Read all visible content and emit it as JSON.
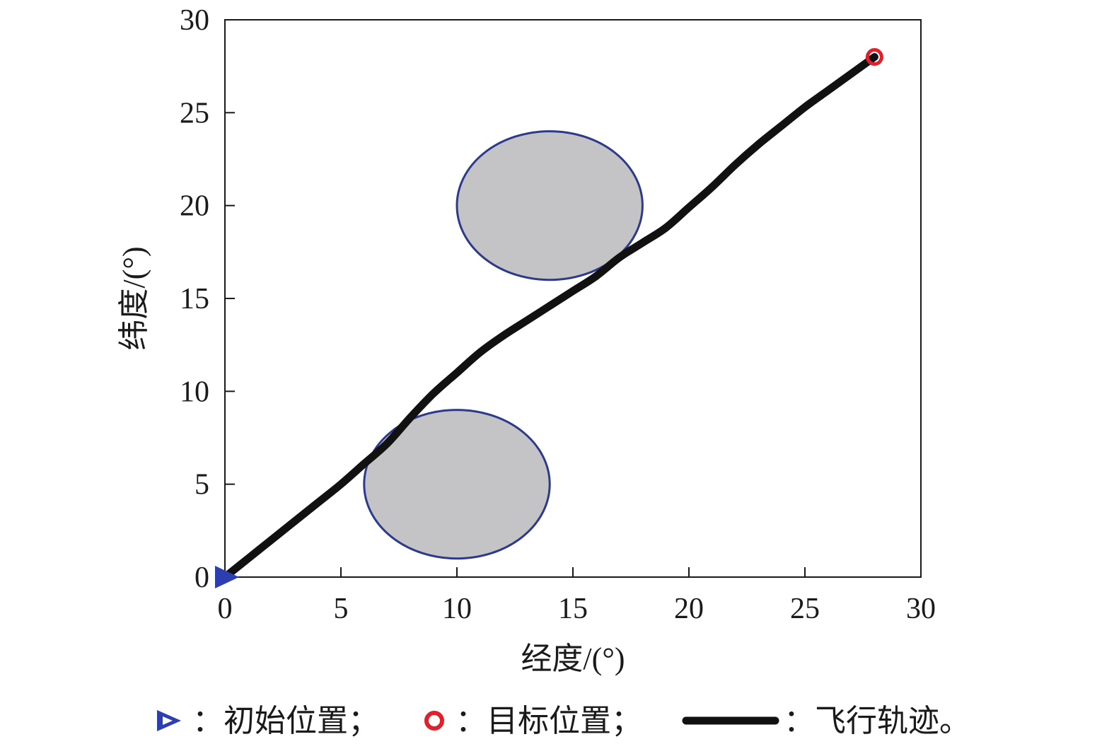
{
  "chart_data": {
    "type": "line",
    "xlabel": "经度/(°)",
    "ylabel": "纬度/(°)",
    "xlim": [
      0,
      30
    ],
    "ylim": [
      0,
      30
    ],
    "xticks": [
      "0",
      "5",
      "10",
      "15",
      "20",
      "25",
      "30"
    ],
    "yticks": [
      "0",
      "5",
      "10",
      "15",
      "20",
      "25",
      "30"
    ],
    "grid": false,
    "legend_position": "bottom",
    "obstacles": [
      {
        "cx": 10,
        "cy": 5,
        "rx": 4,
        "ry": 4
      },
      {
        "cx": 14,
        "cy": 20,
        "rx": 4,
        "ry": 4
      }
    ],
    "start": {
      "x": 0,
      "y": 0
    },
    "target": {
      "x": 28,
      "y": 28
    },
    "series": [
      {
        "x": [
          0,
          1,
          2,
          3,
          4,
          5,
          6,
          7,
          8,
          9,
          10,
          11,
          12,
          13,
          14,
          15,
          16,
          17,
          18,
          19,
          20,
          21,
          22,
          23,
          24,
          25,
          26,
          27,
          28
        ],
        "y": [
          0,
          1,
          2,
          3,
          4,
          5,
          6.1,
          7.2,
          8.6,
          9.9,
          11.0,
          12.1,
          13.0,
          13.8,
          14.6,
          15.4,
          16.2,
          17.2,
          18.0,
          18.8,
          19.9,
          21.0,
          22.2,
          23.3,
          24.3,
          25.3,
          26.2,
          27.1,
          28
        ]
      }
    ],
    "legend": [
      {
        "symbol": "triangle",
        "label": "：初始位置；"
      },
      {
        "symbol": "circle",
        "label": "：目标位置；"
      },
      {
        "symbol": "line",
        "label": "：飞行轨迹。"
      }
    ]
  },
  "colors": {
    "line": "#111111",
    "obstacle_fill": "#c4c4c6",
    "obstacle_stroke": "#2d3a8c",
    "start_marker": "#2d3fb0",
    "target_marker": "#e0202a",
    "axis": "#1a1a1a"
  }
}
